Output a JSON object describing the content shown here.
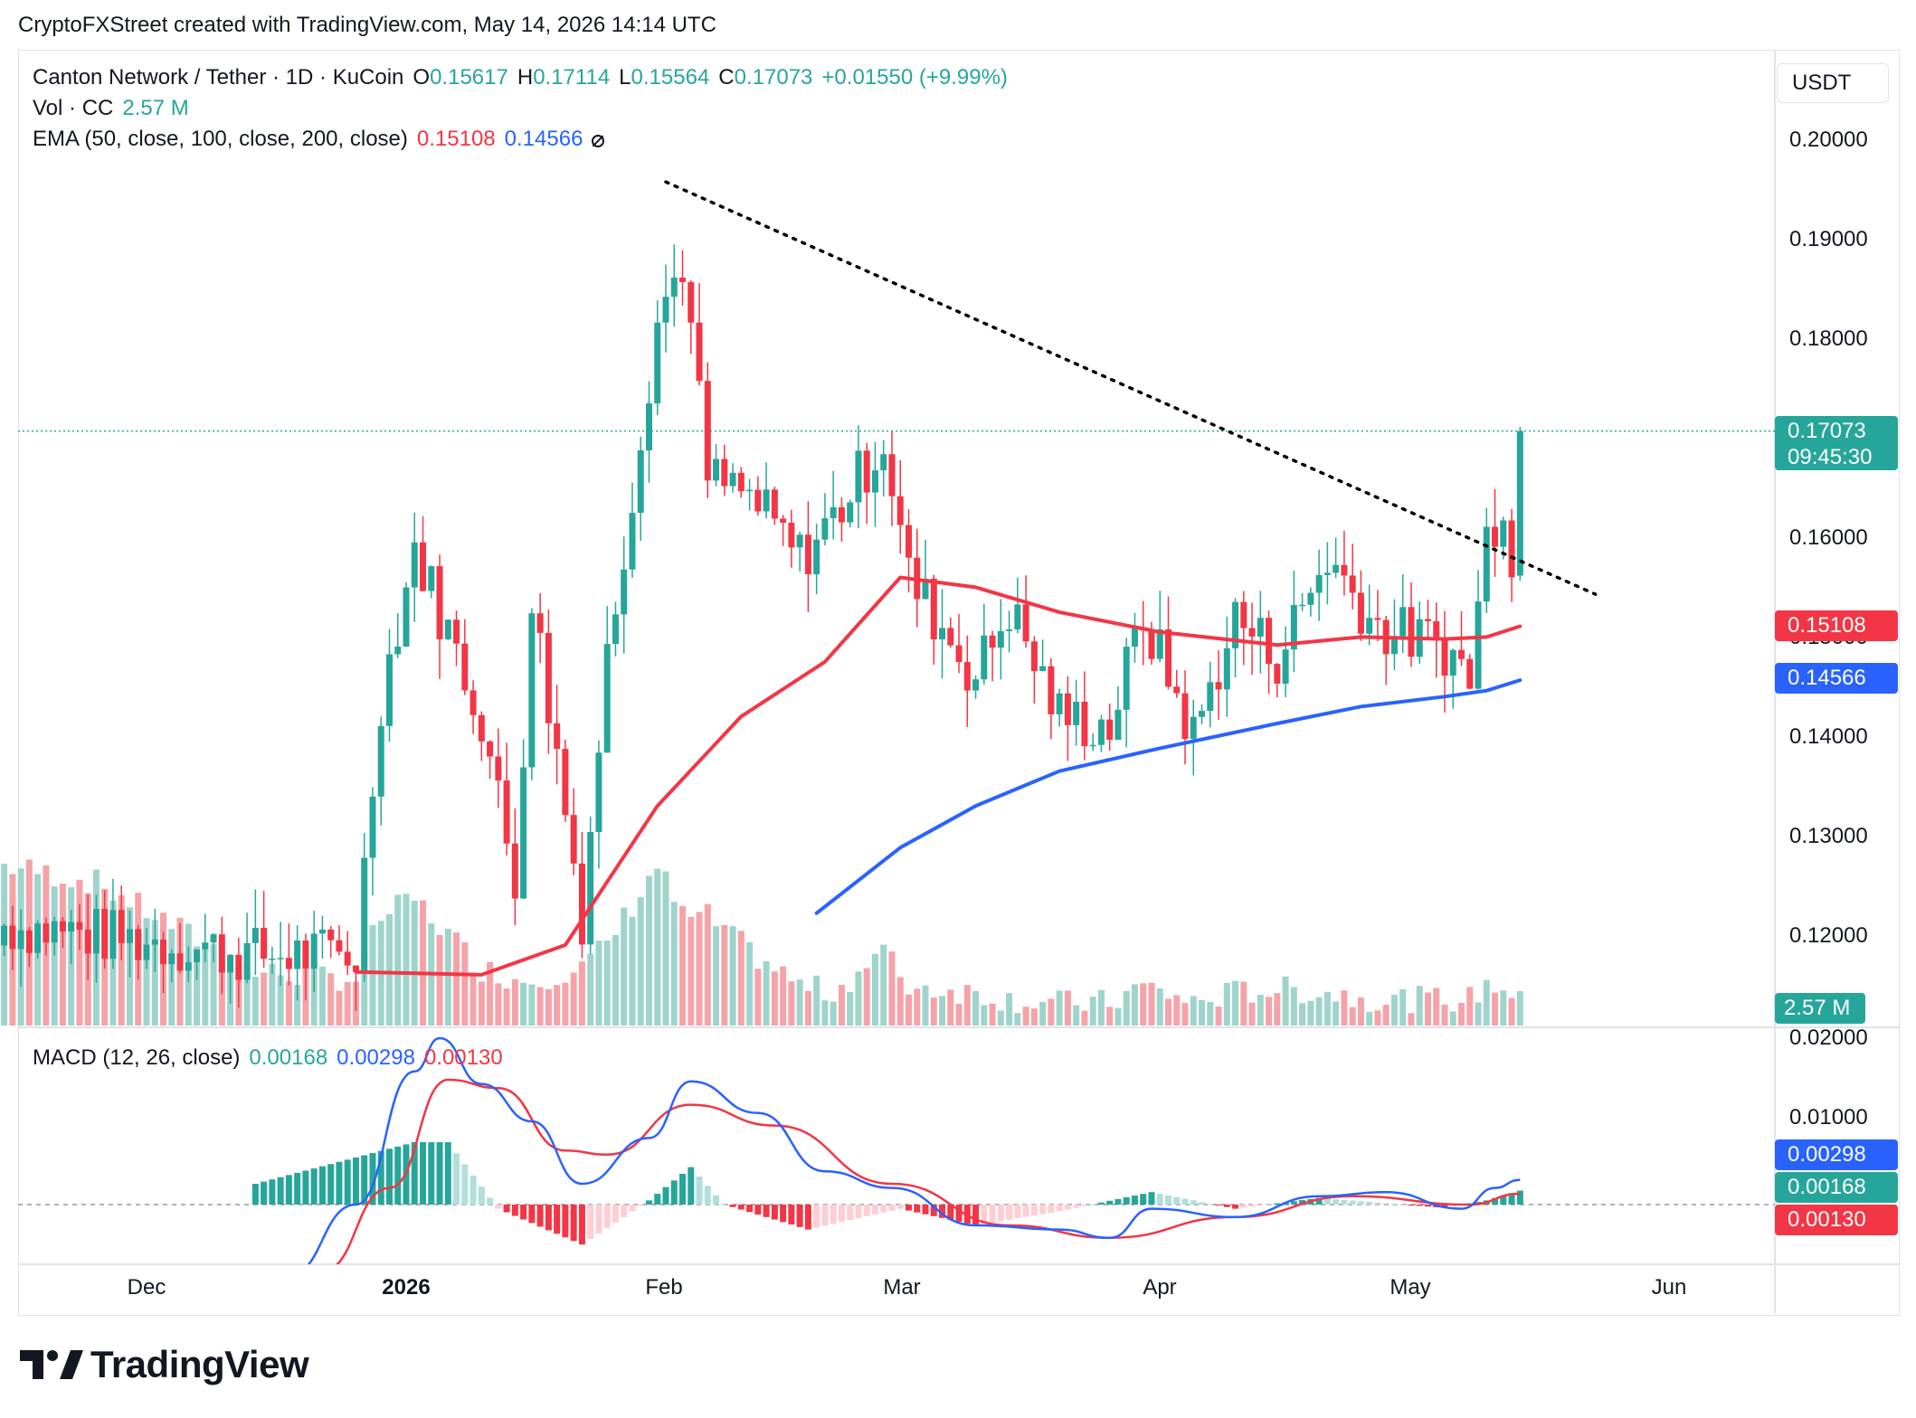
{
  "caption": "CryptoFXStreet created with TradingView.com, May 14, 2026 14:14 UTC",
  "legend": {
    "symbol": "Canton Network / Tether · 1D · KuCoin",
    "o_key": "O",
    "o_val": "0.15617",
    "h_key": "H",
    "h_val": "0.17114",
    "l_key": "L",
    "l_val": "0.15564",
    "c_key": "C",
    "c_val": "0.17073",
    "change": "+0.01550 (+9.99%)",
    "vol_label": "Vol · CC",
    "vol_val": "2.57 M",
    "ema_label": "EMA (50, close, 100, close, 200, close)",
    "ema50_val": "0.15108",
    "ema100_val": "0.14566",
    "macd_label": "MACD (12, 26, close)",
    "macd_hist_val": "0.00168",
    "macd_line_val": "0.00298",
    "macd_signal_val": "0.00130"
  },
  "price_axis": {
    "unit": "USDT",
    "ticks": [
      "0.20000",
      "0.19000",
      "0.18000",
      "0.16000",
      "0.15000",
      "0.14000",
      "0.13000",
      "0.12000"
    ],
    "tags": {
      "last_price": "0.17073",
      "countdown": "09:45:30",
      "ema50": "0.15108",
      "ema100": "0.14566",
      "volume": "2.57 M"
    }
  },
  "macd_axis": {
    "ticks": [
      "0.02000",
      "0.01000"
    ],
    "tags": {
      "macd": "0.00298",
      "hist": "0.00168",
      "signal": "0.00130"
    }
  },
  "time_axis": [
    "Dec",
    "2026",
    "Feb",
    "Mar",
    "Apr",
    "May",
    "Jun"
  ],
  "brand": "TradingView",
  "colors": {
    "up": "#26a69a",
    "down": "#f23645",
    "ema50": "#f23645",
    "ema100": "#2962ff",
    "trendline": "#000000",
    "vol_up": "#9fd4cc",
    "vol_down": "#f5a3a9"
  },
  "chart_data": {
    "type": "candlestick",
    "title": "Canton Network / Tether · 1D · KuCoin",
    "ylim": [
      0.115,
      0.205
    ],
    "trendline": {
      "from": {
        "date": "2026-02-01",
        "price": 0.1958
      },
      "to": {
        "date": "2026-05-23",
        "price": 0.1543
      }
    },
    "anchors": [
      {
        "date": "2025-11-14",
        "close": 0.121,
        "volume": 0.45
      },
      {
        "date": "2025-11-25",
        "close": 0.12,
        "volume": 0.4
      },
      {
        "date": "2025-12-14",
        "close": 0.118,
        "volume": 0.14
      },
      {
        "date": "2025-12-26",
        "close": 0.118,
        "volume": 0.12
      },
      {
        "date": "2025-12-29",
        "close": 0.144,
        "volume": 0.3
      },
      {
        "date": "2026-01-02",
        "close": 0.159,
        "volume": 0.35
      },
      {
        "date": "2026-01-10",
        "close": 0.142,
        "volume": 0.15
      },
      {
        "date": "2026-01-14",
        "close": 0.125,
        "volume": 0.12
      },
      {
        "date": "2026-01-16",
        "close": 0.154,
        "volume": 0.12
      },
      {
        "date": "2026-01-22",
        "close": 0.122,
        "volume": 0.15
      },
      {
        "date": "2026-01-25",
        "close": 0.148,
        "volume": 0.22
      },
      {
        "date": "2026-01-31",
        "close": 0.182,
        "volume": 0.45
      },
      {
        "date": "2026-02-03",
        "close": 0.188,
        "volume": 0.3
      },
      {
        "date": "2026-02-06",
        "close": 0.166,
        "volume": 0.3
      },
      {
        "date": "2026-02-11",
        "close": 0.164,
        "volume": 0.2
      },
      {
        "date": "2026-02-17",
        "close": 0.158,
        "volume": 0.1
      },
      {
        "date": "2026-02-21",
        "close": 0.162,
        "volume": 0.08
      },
      {
        "date": "2026-02-27",
        "close": 0.17,
        "volume": 0.2
      },
      {
        "date": "2026-03-02",
        "close": 0.156,
        "volume": 0.1
      },
      {
        "date": "2026-03-10",
        "close": 0.146,
        "volume": 0.08
      },
      {
        "date": "2026-03-14",
        "close": 0.153,
        "volume": 0.06
      },
      {
        "date": "2026-03-20",
        "close": 0.142,
        "volume": 0.05
      },
      {
        "date": "2026-03-26",
        "close": 0.141,
        "volume": 0.05
      },
      {
        "date": "2026-03-30",
        "close": 0.152,
        "volume": 0.1
      },
      {
        "date": "2026-04-05",
        "close": 0.14,
        "volume": 0.05
      },
      {
        "date": "2026-04-10",
        "close": 0.152,
        "volume": 0.08
      },
      {
        "date": "2026-04-15",
        "close": 0.148,
        "volume": 0.09
      },
      {
        "date": "2026-04-21",
        "close": 0.158,
        "volume": 0.08
      },
      {
        "date": "2026-04-27",
        "close": 0.151,
        "volume": 0.06
      },
      {
        "date": "2026-05-05",
        "close": 0.149,
        "volume": 0.06
      },
      {
        "date": "2026-05-08",
        "close": 0.146,
        "volume": 0.06
      },
      {
        "date": "2026-05-10",
        "close": 0.16,
        "volume": 0.1
      },
      {
        "date": "2026-05-12",
        "close": 0.164,
        "volume": 0.1
      },
      {
        "date": "2026-05-13",
        "close": 0.156,
        "volume": 0.08
      }
    ],
    "last_candle": {
      "date": "2026-05-14",
      "open": 0.15617,
      "high": 0.17114,
      "low": 0.15564,
      "close": 0.17073,
      "volume": 2.57
    },
    "ema50_points": [
      {
        "date": "2025-12-26",
        "value": 0.1163
      },
      {
        "date": "2026-01-10",
        "value": 0.116
      },
      {
        "date": "2026-01-20",
        "value": 0.119
      },
      {
        "date": "2026-01-31",
        "value": 0.133
      },
      {
        "date": "2026-02-10",
        "value": 0.142
      },
      {
        "date": "2026-02-20",
        "value": 0.1475
      },
      {
        "date": "2026-03-01",
        "value": 0.156
      },
      {
        "date": "2026-03-10",
        "value": 0.155
      },
      {
        "date": "2026-03-20",
        "value": 0.1525
      },
      {
        "date": "2026-04-01",
        "value": 0.1505
      },
      {
        "date": "2026-04-15",
        "value": 0.1492
      },
      {
        "date": "2026-04-25",
        "value": 0.15
      },
      {
        "date": "2026-05-05",
        "value": 0.1498
      },
      {
        "date": "2026-05-10",
        "value": 0.15
      },
      {
        "date": "2026-05-14",
        "value": 0.15108
      }
    ],
    "ema100_points": [
      {
        "date": "2026-02-19",
        "value": 0.1222
      },
      {
        "date": "2026-03-01",
        "value": 0.1288
      },
      {
        "date": "2026-03-10",
        "value": 0.133
      },
      {
        "date": "2026-03-20",
        "value": 0.1365
      },
      {
        "date": "2026-04-01",
        "value": 0.1388
      },
      {
        "date": "2026-04-15",
        "value": 0.1413
      },
      {
        "date": "2026-04-25",
        "value": 0.143
      },
      {
        "date": "2026-05-05",
        "value": 0.144
      },
      {
        "date": "2026-05-10",
        "value": 0.1446
      },
      {
        "date": "2026-05-14",
        "value": 0.14566
      }
    ],
    "macd": {
      "ylim": [
        -0.0075,
        0.0205
      ],
      "macd_points": [
        {
          "date": "2025-12-18",
          "value": -0.0085
        },
        {
          "date": "2025-12-26",
          "value": 0.0
        },
        {
          "date": "2026-01-02",
          "value": 0.016
        },
        {
          "date": "2026-01-05",
          "value": 0.02
        },
        {
          "date": "2026-01-10",
          "value": 0.0145
        },
        {
          "date": "2026-01-16",
          "value": 0.01
        },
        {
          "date": "2026-01-22",
          "value": 0.0025
        },
        {
          "date": "2026-01-30",
          "value": 0.008
        },
        {
          "date": "2026-02-04",
          "value": 0.0148
        },
        {
          "date": "2026-02-12",
          "value": 0.011
        },
        {
          "date": "2026-02-20",
          "value": 0.004
        },
        {
          "date": "2026-02-28",
          "value": 0.002
        },
        {
          "date": "2026-03-10",
          "value": -0.0025
        },
        {
          "date": "2026-03-20",
          "value": -0.003
        },
        {
          "date": "2026-03-26",
          "value": -0.004
        },
        {
          "date": "2026-03-31",
          "value": -0.0005
        },
        {
          "date": "2026-04-10",
          "value": -0.0015
        },
        {
          "date": "2026-04-20",
          "value": 0.001
        },
        {
          "date": "2026-04-28",
          "value": 0.0015
        },
        {
          "date": "2026-05-07",
          "value": -0.0005
        },
        {
          "date": "2026-05-11",
          "value": 0.002
        },
        {
          "date": "2026-05-14",
          "value": 0.00298
        }
      ],
      "signal_points": [
        {
          "date": "2025-12-22",
          "value": -0.008
        },
        {
          "date": "2025-12-30",
          "value": 0.002
        },
        {
          "date": "2026-01-06",
          "value": 0.015
        },
        {
          "date": "2026-01-12",
          "value": 0.014
        },
        {
          "date": "2026-01-20",
          "value": 0.0065
        },
        {
          "date": "2026-01-25",
          "value": 0.006
        },
        {
          "date": "2026-02-04",
          "value": 0.012
        },
        {
          "date": "2026-02-14",
          "value": 0.0095
        },
        {
          "date": "2026-02-28",
          "value": 0.0025
        },
        {
          "date": "2026-03-14",
          "value": -0.0025
        },
        {
          "date": "2026-03-26",
          "value": -0.004
        },
        {
          "date": "2026-04-10",
          "value": -0.0015
        },
        {
          "date": "2026-04-24",
          "value": 0.001
        },
        {
          "date": "2026-05-08",
          "value": 0.0
        },
        {
          "date": "2026-05-14",
          "value": 0.0013
        }
      ],
      "histogram_anchors": [
        {
          "date": "2025-12-14",
          "value": 0.0025
        },
        {
          "date": "2026-01-02",
          "value": 0.0075
        },
        {
          "date": "2026-01-06",
          "value": 0.0075
        },
        {
          "date": "2026-01-12",
          "value": -0.0005
        },
        {
          "date": "2026-01-22",
          "value": -0.0048
        },
        {
          "date": "2026-01-30",
          "value": 0.0005
        },
        {
          "date": "2026-02-04",
          "value": 0.0045
        },
        {
          "date": "2026-02-08",
          "value": 0.0
        },
        {
          "date": "2026-02-18",
          "value": -0.003
        },
        {
          "date": "2026-03-01",
          "value": -0.0005
        },
        {
          "date": "2026-03-10",
          "value": -0.0025
        },
        {
          "date": "2026-03-20",
          "value": -0.0008
        },
        {
          "date": "2026-03-31",
          "value": 0.0015
        },
        {
          "date": "2026-04-10",
          "value": -0.0005
        },
        {
          "date": "2026-04-20",
          "value": 0.0008
        },
        {
          "date": "2026-05-05",
          "value": -0.0004
        },
        {
          "date": "2026-05-10",
          "value": 0.0005
        },
        {
          "date": "2026-05-14",
          "value": 0.00168
        }
      ]
    }
  }
}
